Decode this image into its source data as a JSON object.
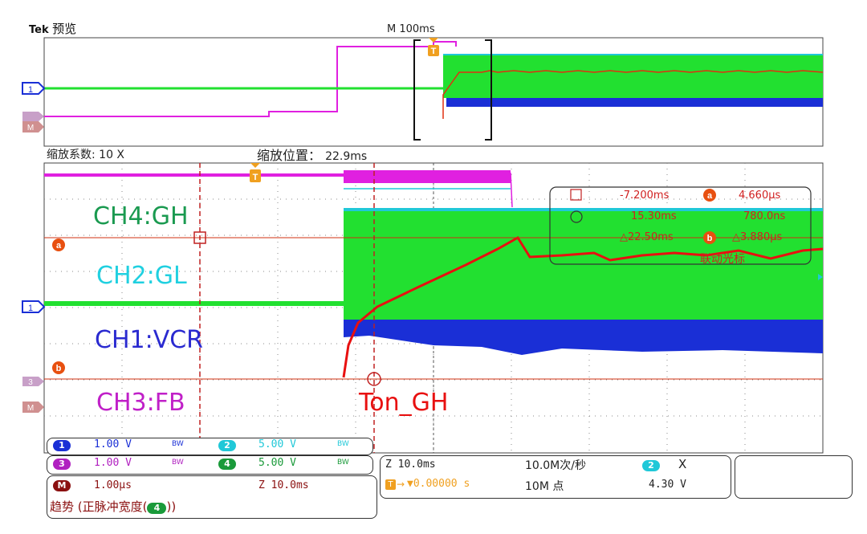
{
  "header": {
    "brand": "Tek",
    "mode": "预览",
    "timebase": "M 100ms"
  },
  "zoom": {
    "factor_label": "缩放系数: 10 X",
    "position_label": "缩放位置：",
    "position_value": "22.9ms"
  },
  "labels": {
    "ch4": "CH4:GH",
    "ch2": "CH2:GL",
    "ch1": "CH1:VCR",
    "ch3": "CH3:FB",
    "annotation": "Ton_GH"
  },
  "markers": {
    "ch1": "1",
    "ch3": "3",
    "math": "M",
    "trigger": "T",
    "cursor_a": "a",
    "cursor_b": "b"
  },
  "cursor_readout": {
    "r1_a": "-7.200ms",
    "r1_b": "4.660µs",
    "r2_a": "15.30ms",
    "r2_b": "780.0ns",
    "r3_a": "△22.50ms",
    "r3_b": "△3.880µs",
    "link": "联动光标"
  },
  "channels": [
    {
      "num": "1",
      "value": "1.00 V",
      "bw": "BW",
      "color": "#1a2fd6"
    },
    {
      "num": "2",
      "value": "5.00 V",
      "bw": "BW",
      "color": "#20c8d8"
    },
    {
      "num": "3",
      "value": "1.00 V",
      "bw": "BW",
      "color": "#b020c0"
    },
    {
      "num": "4",
      "value": "5.00 V",
      "bw": "BW",
      "color": "#1a9a3a"
    }
  ],
  "math": {
    "num": "M",
    "value": "1.00µs",
    "zoom": "Z 10.0ms",
    "trend": "趋势 (正脉冲宽度(",
    "trend_ch": "4",
    "trend_end": "))"
  },
  "acq": {
    "zoom": "Z 10.0ms",
    "rate": "10.0M次/秒",
    "trig_pos": "▼0.00000 s",
    "points": "10M 点",
    "trig_ch": "2",
    "trig_sym": "X",
    "trig_level": "4.30 V"
  },
  "colors": {
    "ch1": "#1a2fd6",
    "ch2": "#20c8d8",
    "ch3": "#d020d0",
    "ch4": "#22e030",
    "math": "#8b1010",
    "cursor": "#e03010",
    "trigger": "#f0a020"
  }
}
